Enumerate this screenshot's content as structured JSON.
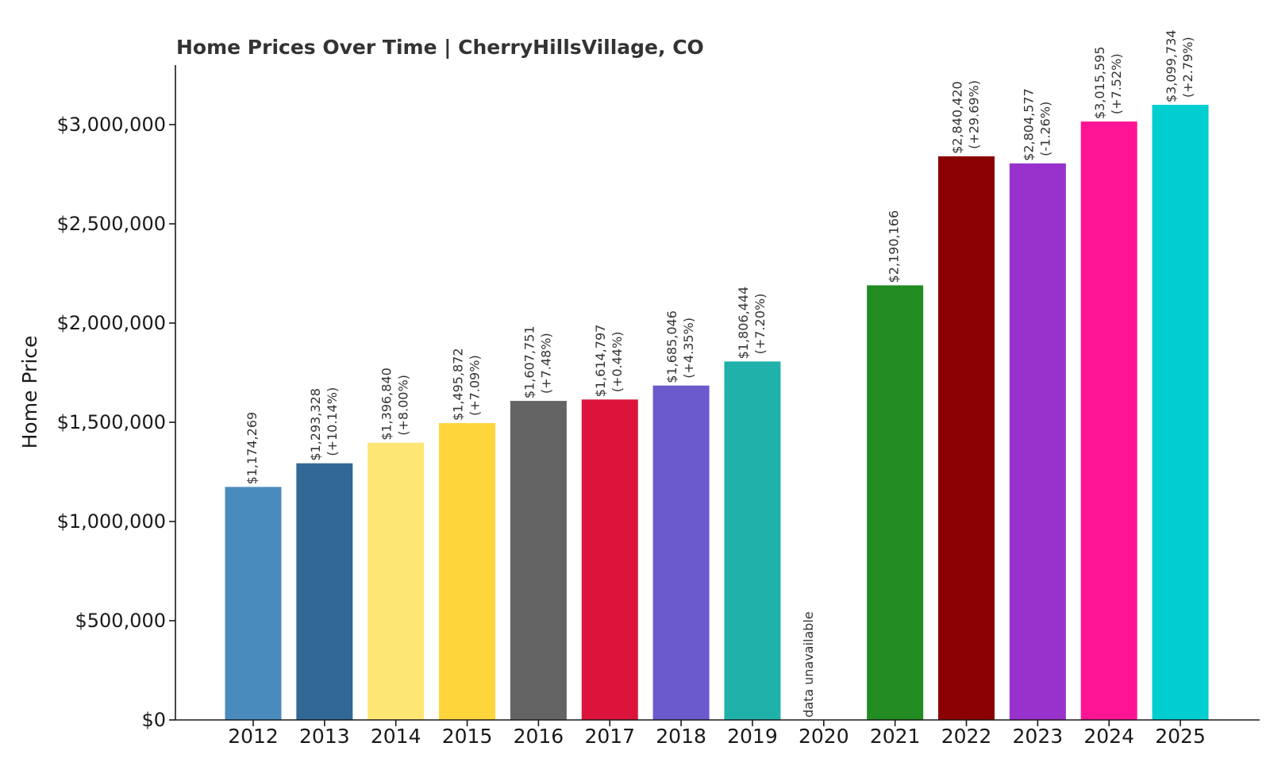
{
  "chart_data": {
    "type": "bar",
    "title": "Home Prices Over Time | CherryHillsVillage, CO",
    "ylabel": "Home Price",
    "xlabel": "",
    "ylim": [
      0,
      3300000
    ],
    "yticks": [
      0,
      500000,
      1000000,
      1500000,
      2000000,
      2500000,
      3000000
    ],
    "ytick_labels": [
      "$0",
      "$500,000",
      "$1,000,000",
      "$1,500,000",
      "$2,000,000",
      "$2,500,000",
      "$3,000,000"
    ],
    "categories": [
      "2012",
      "2013",
      "2014",
      "2015",
      "2016",
      "2017",
      "2018",
      "2019",
      "2020",
      "2021",
      "2022",
      "2023",
      "2024",
      "2025"
    ],
    "values": [
      1174269,
      1293328,
      1396840,
      1495872,
      1607751,
      1614797,
      1685046,
      1806444,
      null,
      2190166,
      2840420,
      2804577,
      3015595,
      3099734
    ],
    "price_labels": [
      "$1,174,269",
      "$1,293,328",
      "$1,396,840",
      "$1,495,872",
      "$1,607,751",
      "$1,614,797",
      "$1,685,046",
      "$1,806,444",
      "data unavailable",
      "$2,190,166",
      "$2,840,420",
      "$2,804,577",
      "$3,015,595",
      "$3,099,734"
    ],
    "change_labels": [
      "",
      "(+10.14%)",
      "(+8.00%)",
      "(+7.09%)",
      "(+7.48%)",
      "(+0.44%)",
      "(+4.35%)",
      "(+7.20%)",
      "",
      "",
      "(+29.69%)",
      "(-1.26%)",
      "(+7.52%)",
      "(+2.79%)"
    ],
    "colors": [
      "#4a8bbe",
      "#316896",
      "#fde674",
      "#fed53b",
      "#646464",
      "#dc143c",
      "#6a5acd",
      "#20b2aa",
      "#ffffff",
      "#228b22",
      "#8b0000",
      "#9932cc",
      "#ff1493",
      "#00ced1"
    ],
    "grid": false,
    "legend": "none"
  }
}
